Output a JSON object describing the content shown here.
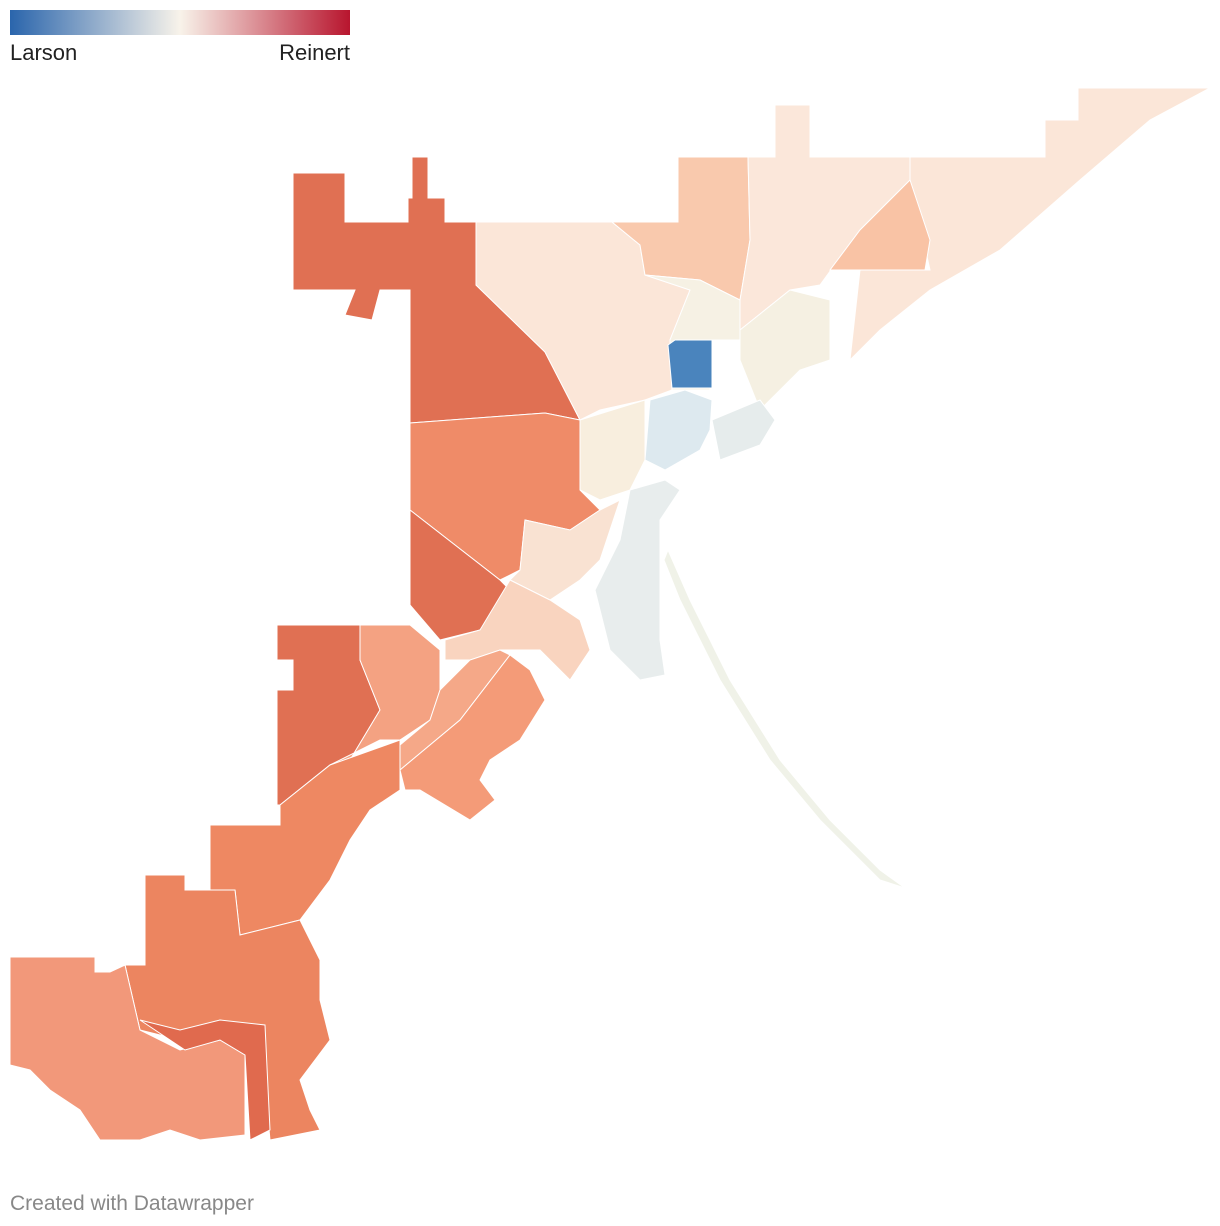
{
  "legend": {
    "left_label": "Larson",
    "right_label": "Reinert",
    "colors": [
      "#2a65ac",
      "#f8f3ea",
      "#b8152e"
    ]
  },
  "footer": "Created with Datawrapper"
}
